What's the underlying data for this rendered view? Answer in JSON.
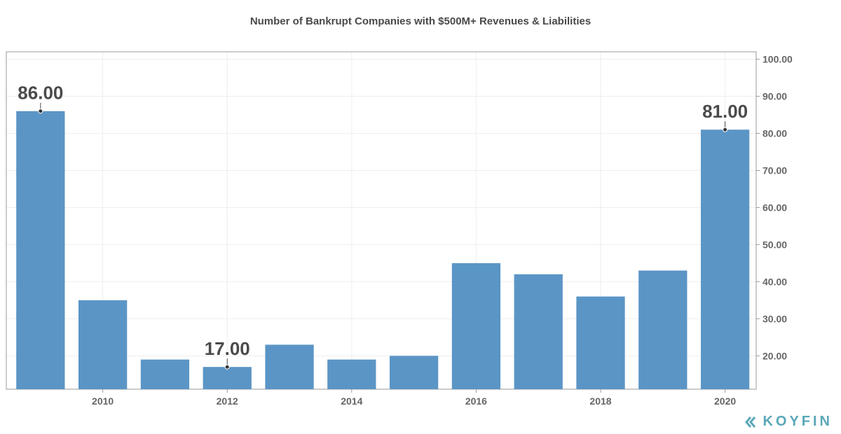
{
  "chart_data": {
    "type": "bar",
    "title": "Number of Bankrupt Companies with $500M+ Revenues & Liabilities",
    "xlabel": "",
    "ylabel": "",
    "categories": [
      "2009",
      "2010",
      "2011",
      "2012",
      "2013",
      "2014",
      "2015",
      "2016",
      "2017",
      "2018",
      "2019",
      "2020"
    ],
    "values": [
      86,
      35,
      19,
      17,
      23,
      19,
      20,
      45,
      42,
      36,
      43,
      81
    ],
    "x_tick_labels": [
      "2010",
      "2012",
      "2014",
      "2016",
      "2018",
      "2020"
    ],
    "y_tick_labels": [
      "20.00",
      "30.00",
      "40.00",
      "50.00",
      "60.00",
      "70.00",
      "80.00",
      "90.00",
      "100.00"
    ],
    "y_ticks": [
      20,
      30,
      40,
      50,
      60,
      70,
      80,
      90,
      100
    ],
    "ylim": [
      11,
      102
    ],
    "y_axis_side": "right",
    "grid": true,
    "bar_color": "#5b95c6",
    "annotations": [
      {
        "category": "2009",
        "text": "86.00"
      },
      {
        "category": "2012",
        "text": "17.00"
      },
      {
        "category": "2020",
        "text": "81.00"
      }
    ]
  },
  "brand": {
    "name": "KOYFIN",
    "icon": "koyfin-logo-icon",
    "color": "#5aa7b8"
  }
}
